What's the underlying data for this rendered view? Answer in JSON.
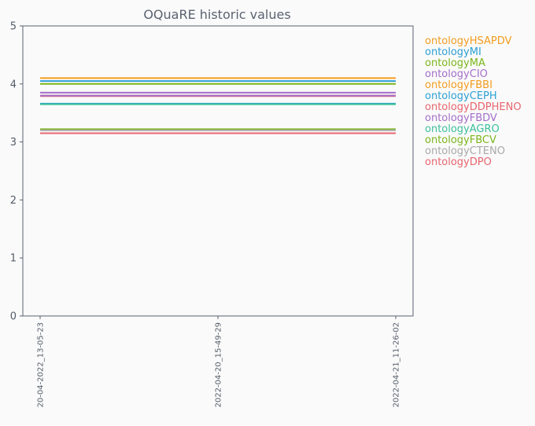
{
  "chart_data": {
    "type": "line",
    "title": "OQuaRE historic values",
    "xlabel": "",
    "ylabel": "",
    "x": [
      "20-04-2022_13-05-23",
      "2022-04-20_15-49-29",
      "2022-04-21_11-26-02"
    ],
    "yticks": [
      "0",
      "1",
      "2",
      "3",
      "4",
      "5"
    ],
    "ylim": [
      0,
      5
    ],
    "grid": false,
    "legend_position": "right",
    "series": [
      {
        "name": "ontologyHSAPDV",
        "color": "#f39c1e",
        "values": [
          4.1,
          4.1,
          4.1
        ]
      },
      {
        "name": "ontologyMI",
        "color": "#2d9fd3",
        "values": [
          4.05,
          4.05,
          4.05
        ]
      },
      {
        "name": "ontologyMA",
        "color": "#7bb61b",
        "values": [
          4.0,
          4.0,
          4.0
        ]
      },
      {
        "name": "ontologyCIO",
        "color": "#a46ec9",
        "values": [
          3.85,
          3.85,
          3.85
        ]
      },
      {
        "name": "ontologyFBBI",
        "color": "#f39c1e",
        "values": [
          3.8,
          3.8,
          3.8
        ]
      },
      {
        "name": "ontologyCEPH",
        "color": "#2d9fd3",
        "values": [
          3.66,
          3.66,
          3.66
        ]
      },
      {
        "name": "ontologyDDPHENO",
        "color": "#e8656e",
        "values": [
          3.79,
          3.79,
          3.79
        ]
      },
      {
        "name": "ontologyFBDV",
        "color": "#a46ec9",
        "values": [
          3.8,
          3.8,
          3.8
        ]
      },
      {
        "name": "ontologyAGRO",
        "color": "#3bbf9a",
        "values": [
          3.65,
          3.65,
          3.65
        ]
      },
      {
        "name": "ontologyFBCV",
        "color": "#7bb61b",
        "values": [
          3.22,
          3.22,
          3.22
        ]
      },
      {
        "name": "ontologyCTENO",
        "color": "#a9a9a9",
        "values": [
          3.2,
          3.2,
          3.2
        ]
      },
      {
        "name": "ontologyDPO",
        "color": "#e8656e",
        "values": [
          3.15,
          3.15,
          3.15
        ]
      }
    ],
    "axis_color": "#5a6270"
  }
}
